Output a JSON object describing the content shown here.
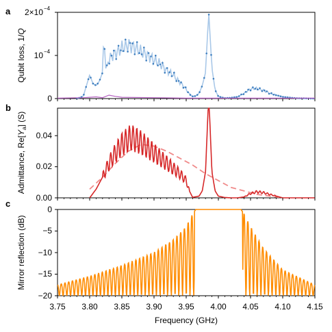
{
  "chart_data": [
    {
      "panel": "a",
      "type": "line",
      "ylabel": "Qubit loss, 1/Q",
      "ylim": [
        0,
        0.0002
      ],
      "xlim": [
        3.75,
        4.15
      ],
      "yticks": [
        0,
        0.0001,
        0.0002
      ],
      "ytick_labels": [
        "0",
        "10⁻⁴",
        "2×10⁻⁴"
      ],
      "xtick_labels_visible": false,
      "grid": false,
      "series": [
        {
          "color": "#3f7fbf",
          "style": "line with point markers",
          "x": [
            3.78,
            3.79,
            3.795,
            3.8,
            3.805,
            3.81,
            3.815,
            3.82,
            3.822,
            3.825,
            3.83,
            3.835,
            3.84,
            3.845,
            3.85,
            3.855,
            3.86,
            3.865,
            3.87,
            3.875,
            3.88,
            3.885,
            3.89,
            3.895,
            3.9,
            3.905,
            3.91,
            3.915,
            3.92,
            3.925,
            3.93,
            3.935,
            3.94,
            3.945,
            3.95,
            3.955,
            3.96,
            3.965,
            3.97,
            3.975,
            3.98,
            3.985,
            3.99,
            3.995,
            4.0,
            4.01,
            4.02,
            4.03,
            4.04,
            4.045,
            4.05,
            4.055,
            4.06,
            4.065,
            4.07,
            4.075,
            4.08,
            4.09,
            4.1,
            4.12,
            4.15
          ],
          "y": [
            0.0,
            5e-06,
            3e-05,
            5.5e-05,
            3.5e-05,
            3e-05,
            4e-05,
            6e-05,
            0.000145,
            7e-05,
            9e-05,
            0.0001,
            0.000105,
            0.00011,
            0.000118,
            0.00012,
            0.000125,
            0.000122,
            0.000118,
            0.000115,
            0.000108,
            0.000105,
            0.0001,
            9.5e-05,
            9e-05,
            8.5e-05,
            8e-05,
            7.2e-05,
            6.5e-05,
            6e-05,
            5.5e-05,
            4.5e-05,
            3.8e-05,
            3e-05,
            2.2e-05,
            1e-05,
            5e-06,
            6e-06,
            1.2e-05,
            3e-05,
            6e-05,
            0.0002,
            7e-05,
            2e-05,
            5e-06,
            1e-06,
            2e-06,
            4e-06,
            1.2e-05,
            1.8e-05,
            2.2e-05,
            2.4e-05,
            2.3e-05,
            2.1e-05,
            1.9e-05,
            1.6e-05,
            1.2e-05,
            8e-06,
            4e-06,
            1e-06,
            0.0
          ]
        },
        {
          "color": "#b45fc0",
          "style": "line",
          "x": [
            3.75,
            3.79,
            3.8,
            3.81,
            3.82,
            3.83,
            3.84,
            3.85,
            3.9,
            3.95,
            4.0,
            4.15
          ],
          "y": [
            1e-06,
            2e-06,
            3e-06,
            4e-06,
            2e-06,
            8e-06,
            5e-06,
            3e-06,
            2e-06,
            1e-06,
            1e-06,
            1e-06
          ]
        }
      ]
    },
    {
      "panel": "b",
      "type": "line",
      "ylabel": "Admittance, Re[Yₐ] (S)",
      "ylim": [
        0,
        0.052
      ],
      "xlim": [
        3.75,
        4.15
      ],
      "yticks": [
        0.0,
        0.02,
        0.04
      ],
      "ytick_labels": [
        "0.00",
        "0.02",
        "0.04"
      ],
      "xtick_labels_visible": false,
      "grid": false,
      "series": [
        {
          "color": "#d62728",
          "style": "solid",
          "x": [
            3.8,
            3.81,
            3.82,
            3.83,
            3.84,
            3.85,
            3.86,
            3.865,
            3.87,
            3.88,
            3.89,
            3.9,
            3.91,
            3.92,
            3.93,
            3.94,
            3.95,
            3.955,
            3.96,
            3.97,
            3.975,
            3.98,
            3.985,
            3.99,
            3.995,
            4.0,
            4.01,
            4.02,
            4.03,
            4.04,
            4.05,
            4.06,
            4.07,
            4.08,
            4.09,
            4.1,
            4.15
          ],
          "y": [
            0.0,
            0.005,
            0.012,
            0.02,
            0.026,
            0.031,
            0.034,
            0.035,
            0.034,
            0.032,
            0.029,
            0.026,
            0.023,
            0.02,
            0.017,
            0.014,
            0.01,
            0.004,
            0.0003,
            0.001,
            0.004,
            0.015,
            0.06,
            0.015,
            0.004,
            0.001,
            0.0002,
            0.0,
            0.0,
            0.0005,
            0.0025,
            0.0035,
            0.003,
            0.002,
            0.001,
            0.0,
            0.0
          ]
        },
        {
          "color": "#f08a8a",
          "style": "dashed",
          "x": [
            3.8,
            3.82,
            3.84,
            3.86,
            3.88,
            3.9,
            3.92,
            3.94,
            3.96,
            3.98,
            4.0,
            4.02,
            4.04,
            4.06,
            4.08,
            4.1
          ],
          "y": [
            0.005,
            0.012,
            0.02,
            0.027,
            0.031,
            0.03,
            0.027,
            0.023,
            0.019,
            0.014,
            0.01,
            0.006,
            0.004,
            0.002,
            0.001,
            0.0
          ]
        }
      ]
    },
    {
      "panel": "c",
      "type": "line",
      "ylabel": "Mirror reflection (dB)",
      "xlabel": "Frequency (GHz)",
      "ylim": [
        -20,
        0
      ],
      "xlim": [
        3.75,
        4.15
      ],
      "yticks": [
        -20,
        -15,
        -10,
        -5,
        0
      ],
      "xticks": [
        3.75,
        3.8,
        3.85,
        3.9,
        3.95,
        4.0,
        4.05,
        4.1,
        4.15
      ],
      "grid": false,
      "series": [
        {
          "color": "#ff8c00",
          "style": "solid",
          "x": [
            3.75,
            3.8,
            3.85,
            3.9,
            3.93,
            3.95,
            3.96,
            3.965,
            4.035,
            4.04,
            4.05,
            4.07,
            4.1,
            4.15
          ],
          "y": [
            -17.5,
            -15.5,
            -13,
            -10,
            -7,
            -4,
            -1,
            0,
            0,
            -1,
            -4,
            -9,
            -14,
            -17.5
          ],
          "envelope_min": -20,
          "envelope_max_side_lobes": "oscillating from -20 dB up to the values above"
        }
      ]
    }
  ],
  "panel_labels": [
    "a",
    "b",
    "c"
  ],
  "texts": {
    "ylabel_a_prefix": "Qubit loss, 1/",
    "ylabel_a_q": "Q",
    "ylabel_b_prefix": "Admittance, Re[",
    "ylabel_b_y": "Y",
    "ylabel_b_sub": "a",
    "ylabel_b_suffix": "] (S)",
    "ylabel_c": "Mirror reflection (dB)",
    "xlabel": "Frequency (GHz)",
    "ytick_a": [
      "0",
      "10",
      "2×10"
    ],
    "ytick_a_exp": [
      "",
      "−4",
      "−4"
    ],
    "ytick_b": [
      "0.00",
      "0.02",
      "0.04"
    ],
    "ytick_c": [
      "0",
      "−5",
      "−10",
      "−15",
      "−20"
    ],
    "xticks": [
      "3.75",
      "3.80",
      "3.85",
      "3.90",
      "3.95",
      "4.00",
      "4.05",
      "4.10",
      "4.15"
    ]
  },
  "colors": {
    "blue": "#3f7fbf",
    "blue_line": "#a9c8e8",
    "purple": "#b45fc0",
    "red": "#d62728",
    "red_dash": "#f08a8a",
    "orange": "#ff8c00"
  }
}
